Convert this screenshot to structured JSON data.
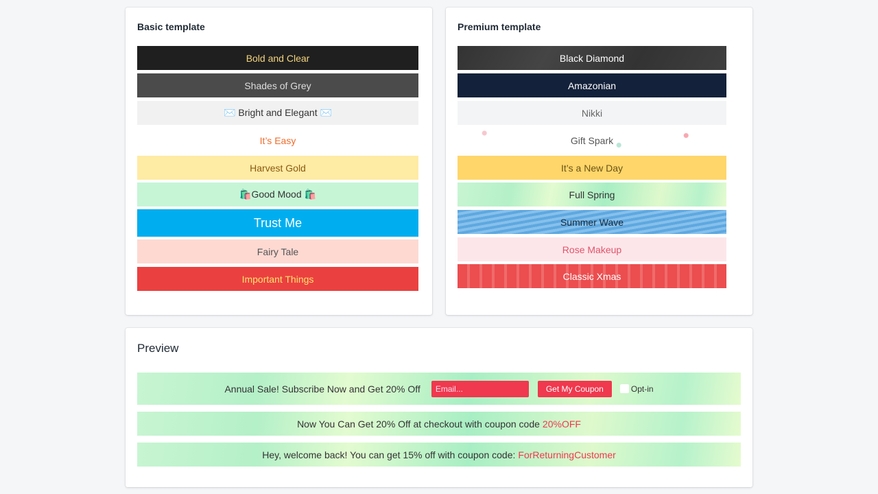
{
  "basic": {
    "title": "Basic template",
    "items": [
      "Bold and Clear",
      "Shades of Grey",
      "✉️ Bright and Elegant ✉️",
      "It’s Easy",
      "Harvest Gold",
      "🛍️Good Mood 🛍️",
      "Trust Me",
      "Fairy Tale",
      "Important Things"
    ]
  },
  "premium": {
    "title": "Premium template",
    "items": [
      "Black Diamond",
      "Amazonian",
      "Nikki",
      "Gift Spark",
      "It’s a New Day",
      "Full Spring",
      "Summer Wave",
      "Rose Makeup",
      "Classic Xmas"
    ]
  },
  "preview": {
    "title": "Preview",
    "bar1": {
      "text": "Annual Sale! Subscribe Now and Get 20% Off",
      "email_placeholder": "Email...",
      "button": "Get My Coupon",
      "optin": "Opt-in"
    },
    "bar2": {
      "text": "Now You Can Get 20% Off at checkout with coupon code",
      "code": "20%OFF"
    },
    "bar3": {
      "text": "Hey, welcome back! You can get 15% off with coupon code:",
      "code": "ForReturningCustomer"
    }
  }
}
